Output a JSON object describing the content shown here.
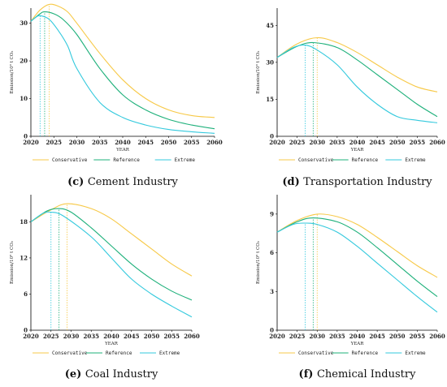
{
  "colors": {
    "conservative": "#f7c948",
    "reference": "#1db07a",
    "extreme": "#33c9dd"
  },
  "legend": [
    "Conservative",
    "Reference",
    "Extreme"
  ],
  "xticks": [
    "2020",
    "2025",
    "2030",
    "2035",
    "2040",
    "2045",
    "2050",
    "2055",
    "2060"
  ],
  "chart_data": [
    {
      "type": "line",
      "title_letter": "(c)",
      "title": "Cement Industry",
      "xlabel": "YEAR",
      "ylabel": "Emission/10⁸ t CO₂",
      "xlim": [
        2020,
        2060
      ],
      "ylim": [
        0,
        34
      ],
      "yticks": [
        "0",
        "10",
        "20",
        "30"
      ],
      "peaks": [
        2024,
        2023,
        2022
      ],
      "series": [
        {
          "name": "Conservative",
          "x": [
            2020,
            2022,
            2024,
            2026,
            2028,
            2030,
            2035,
            2040,
            2045,
            2050,
            2055,
            2060
          ],
          "values": [
            30.5,
            33.5,
            35,
            34.5,
            33,
            30,
            22,
            15,
            10,
            7,
            5.5,
            5
          ]
        },
        {
          "name": "Reference",
          "x": [
            2020,
            2022,
            2023,
            2025,
            2027,
            2030,
            2035,
            2040,
            2045,
            2050,
            2055,
            2060
          ],
          "values": [
            30.5,
            32.5,
            33,
            32.5,
            31,
            27,
            18,
            11,
            7,
            4.5,
            3,
            2
          ]
        },
        {
          "name": "Extreme",
          "x": [
            2020,
            2021,
            2022,
            2024,
            2026,
            2028,
            2030,
            2035,
            2040,
            2045,
            2050,
            2055,
            2060
          ],
          "values": [
            30.5,
            31.5,
            32,
            31,
            28,
            24,
            18,
            9,
            5,
            3,
            1.8,
            1.2,
            0.8
          ]
        }
      ]
    },
    {
      "type": "line",
      "title_letter": "(d)",
      "title": "Transportation Industry",
      "xlabel": "YEAR",
      "ylabel": "Emission/10⁸ t CO₂",
      "xlim": [
        2020,
        2060
      ],
      "ylim": [
        0,
        52
      ],
      "yticks": [
        "0",
        "15",
        "30",
        "45"
      ],
      "peaks": [
        2030,
        2029,
        2027
      ],
      "series": [
        {
          "name": "Conservative",
          "x": [
            2020,
            2025,
            2030,
            2035,
            2040,
            2045,
            2050,
            2055,
            2060
          ],
          "values": [
            32,
            37.5,
            40,
            38,
            34,
            29,
            24,
            20,
            18
          ]
        },
        {
          "name": "Reference",
          "x": [
            2020,
            2025,
            2029,
            2035,
            2040,
            2045,
            2050,
            2055,
            2060
          ],
          "values": [
            32,
            36.5,
            38,
            36,
            31,
            25,
            19,
            13,
            8
          ]
        },
        {
          "name": "Extreme",
          "x": [
            2020,
            2024,
            2027,
            2030,
            2035,
            2040,
            2045,
            2050,
            2055,
            2060
          ],
          "values": [
            32,
            36,
            37,
            35,
            29,
            20,
            13,
            8,
            6.5,
            5.5
          ]
        }
      ]
    },
    {
      "type": "line",
      "title_letter": "(e)",
      "title": "Coal Industry",
      "xlabel": "YEAR",
      "ylabel": "Emission/10⁸ t CO₂",
      "xlim": [
        2020,
        2060
      ],
      "ylim": [
        0,
        22.5
      ],
      "yticks": [
        "0",
        "6",
        "12",
        "18"
      ],
      "peaks": [
        2029,
        2027,
        2025
      ],
      "series": [
        {
          "name": "Conservative",
          "x": [
            2020,
            2025,
            2029,
            2035,
            2040,
            2045,
            2050,
            2055,
            2060
          ],
          "values": [
            18,
            20,
            21,
            20.2,
            18.5,
            16,
            13.5,
            11,
            9
          ]
        },
        {
          "name": "Reference",
          "x": [
            2020,
            2024,
            2027,
            2030,
            2035,
            2040,
            2045,
            2050,
            2055,
            2060
          ],
          "values": [
            18,
            19.8,
            20.2,
            19.6,
            17,
            14,
            11,
            8.5,
            6.5,
            5
          ]
        },
        {
          "name": "Extreme",
          "x": [
            2020,
            2023,
            2025,
            2028,
            2035,
            2040,
            2045,
            2050,
            2055,
            2060
          ],
          "values": [
            18,
            19.4,
            19.6,
            19,
            15.5,
            12,
            8.5,
            6,
            4,
            2.2
          ]
        }
      ]
    },
    {
      "type": "line",
      "title_letter": "(f)",
      "title": "Chemical Industry",
      "xlabel": "YEAR",
      "ylabel": "Emission/10⁸ t CO₂",
      "xlim": [
        2020,
        2060
      ],
      "ylim": [
        0,
        10.5
      ],
      "yticks": [
        "0",
        "3",
        "6",
        "9"
      ],
      "peaks": [
        2030,
        2029,
        2027
      ],
      "series": [
        {
          "name": "Conservative",
          "x": [
            2020,
            2025,
            2030,
            2035,
            2040,
            2045,
            2050,
            2055,
            2060
          ],
          "values": [
            7.6,
            8.5,
            9,
            8.8,
            8.2,
            7.2,
            6.1,
            5,
            4.1
          ]
        },
        {
          "name": "Reference",
          "x": [
            2020,
            2025,
            2029,
            2035,
            2040,
            2045,
            2050,
            2055,
            2060
          ],
          "values": [
            7.6,
            8.4,
            8.7,
            8.4,
            7.6,
            6.4,
            5.1,
            3.8,
            2.6
          ]
        },
        {
          "name": "Extreme",
          "x": [
            2020,
            2024,
            2027,
            2030,
            2035,
            2040,
            2045,
            2050,
            2055,
            2060
          ],
          "values": [
            7.6,
            8.2,
            8.3,
            8.2,
            7.6,
            6.5,
            5.2,
            3.9,
            2.6,
            1.4
          ]
        }
      ]
    }
  ]
}
